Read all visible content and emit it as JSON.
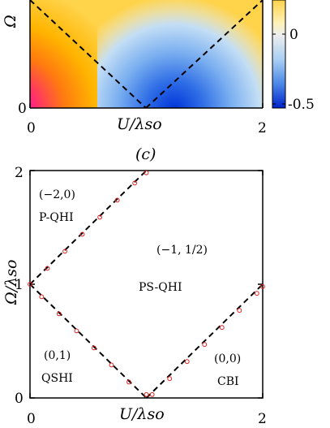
{
  "panel_b": {
    "x_tick_labels": [
      "0",
      "2"
    ],
    "y_tick_labels": [
      "0"
    ],
    "xlabel": "U/λso",
    "ylabel": "Ω",
    "colorbar_tick_labels": [
      "0",
      "-0.5"
    ]
  },
  "panel_c": {
    "panel_label": "(c)",
    "x_tick_labels": [
      "0",
      "2"
    ],
    "y_tick_labels": [
      "2",
      "1",
      "0"
    ],
    "xlabel": "U/λso",
    "ylabel": "Ω/λso",
    "regions": {
      "pqhi_index": "(−2,0)",
      "pqhi_name": "P-QHI",
      "psqhi_index": "(−1, 1/2)",
      "psqhi_name": "PS-QHI",
      "qshi_index": "(0,1)",
      "qshi_name": "QSHI",
      "cbi_index": "(0,0)",
      "cbi_name": "CBI"
    }
  },
  "colors": {
    "marker": "#e02020",
    "dashed_line": "#000000"
  },
  "chart_data": [
    {
      "type": "heatmap",
      "panel": "b",
      "xlim": [
        0,
        2
      ],
      "ylim": [
        0,
        2
      ],
      "colorbar_ticks": [
        0,
        -0.5
      ],
      "colormap": "magenta-red-yellow-white-blue",
      "dashed_boundaries": [
        {
          "x": [
            0,
            1
          ],
          "y": [
            1,
            0
          ]
        },
        {
          "x": [
            1,
            2
          ],
          "y": [
            0,
            1
          ]
        }
      ]
    },
    {
      "type": "scatter",
      "panel": "c",
      "xlim": [
        0,
        2
      ],
      "ylim": [
        0,
        2
      ],
      "grid": false,
      "dashed_boundaries": [
        {
          "x": [
            0,
            1
          ],
          "y": [
            1,
            0
          ]
        },
        {
          "x": [
            1,
            2
          ],
          "y": [
            0,
            1
          ]
        },
        {
          "x": [
            0,
            1
          ],
          "y": [
            1,
            2
          ]
        }
      ],
      "series": [
        {
          "x": [
            0.0,
            0.15,
            0.3,
            0.45,
            0.6,
            0.75,
            0.9,
            1.0
          ],
          "y": [
            1.0,
            1.14,
            1.29,
            1.44,
            1.59,
            1.74,
            1.89,
            1.98
          ]
        },
        {
          "x": [
            0.1,
            0.25,
            0.4,
            0.55,
            0.7,
            0.85,
            1.0
          ],
          "y": [
            0.89,
            0.74,
            0.59,
            0.44,
            0.29,
            0.14,
            0.03
          ]
        },
        {
          "x": [
            1.05,
            1.2,
            1.35,
            1.5,
            1.65,
            1.8,
            1.95,
            2.0
          ],
          "y": [
            0.03,
            0.17,
            0.32,
            0.47,
            0.62,
            0.77,
            0.92,
            0.98
          ]
        }
      ]
    }
  ]
}
